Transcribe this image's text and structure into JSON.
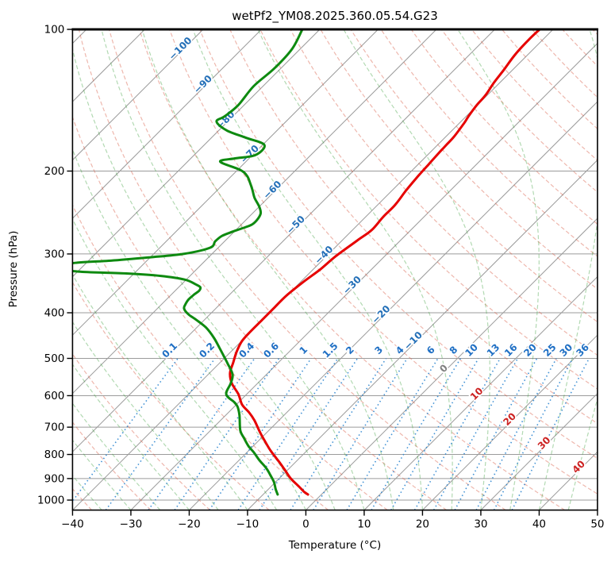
{
  "title": "wetPf2_YM08.2025.360.05.54.G23",
  "axes": {
    "xlabel": "Temperature (°C)",
    "ylabel": "Pressure (hPa)",
    "x_ticks": [
      -40,
      -30,
      -20,
      -10,
      0,
      10,
      20,
      30,
      40,
      50
    ],
    "y_ticks": [
      100,
      200,
      300,
      400,
      500,
      600,
      700,
      800,
      900,
      1000
    ],
    "xlim": [
      -40,
      50
    ],
    "ylim": [
      1050,
      100
    ]
  },
  "chart_data": {
    "type": "line",
    "projection": "skew-T log-P",
    "title": "wetPf2_YM08.2025.360.05.54.G23",
    "xlabel": "Temperature (°C)",
    "ylabel": "Pressure (hPa)",
    "x_unit": "degC",
    "y_unit": "hPa",
    "series": [
      {
        "name": "temperature",
        "points_p_t": [
          [
            100,
            -42.3
          ],
          [
            105,
            -42.4
          ],
          [
            113,
            -42.2
          ],
          [
            122,
            -41.5
          ],
          [
            130,
            -41
          ],
          [
            138,
            -40.3
          ],
          [
            145,
            -40.1
          ],
          [
            153,
            -39.6
          ],
          [
            158,
            -39.2
          ],
          [
            169,
            -38.6
          ],
          [
            176,
            -38.5
          ],
          [
            183,
            -38.4
          ],
          [
            194,
            -38.2
          ],
          [
            205,
            -38
          ],
          [
            220,
            -37.6
          ],
          [
            236,
            -37
          ],
          [
            250,
            -37
          ],
          [
            267,
            -36.7
          ],
          [
            281,
            -37.4
          ],
          [
            304,
            -38.4
          ],
          [
            324,
            -38.8
          ],
          [
            346,
            -39.6
          ],
          [
            369,
            -40.1
          ],
          [
            391,
            -40.1
          ],
          [
            414,
            -40.1
          ],
          [
            439,
            -40.1
          ],
          [
            460,
            -39.9
          ],
          [
            484,
            -39
          ],
          [
            511,
            -37.7
          ],
          [
            537,
            -36.5
          ],
          [
            565,
            -34.4
          ],
          [
            596,
            -31.4
          ],
          [
            627,
            -29
          ],
          [
            651,
            -26.5
          ],
          [
            677,
            -24.2
          ],
          [
            719,
            -21.1
          ],
          [
            754,
            -18.5
          ],
          [
            787,
            -16.1
          ],
          [
            830,
            -12.8
          ],
          [
            867,
            -10.2
          ],
          [
            901,
            -7.9
          ],
          [
            936,
            -5.2
          ],
          [
            962,
            -3.3
          ],
          [
            973,
            -2.3
          ]
        ]
      },
      {
        "name": "dewpoint",
        "points_p_t": [
          [
            100,
            -83
          ],
          [
            110,
            -81.4
          ],
          [
            121,
            -81.1
          ],
          [
            132,
            -81.6
          ],
          [
            145,
            -81
          ],
          [
            153,
            -81.4
          ],
          [
            157,
            -81.9
          ],
          [
            164,
            -78.6
          ],
          [
            170,
            -74
          ],
          [
            176,
            -69.7
          ],
          [
            185,
            -69.5
          ],
          [
            188,
            -72.5
          ],
          [
            191,
            -74.4
          ],
          [
            199,
            -69.5
          ],
          [
            205,
            -67.3
          ],
          [
            213,
            -65.4
          ],
          [
            219,
            -64.1
          ],
          [
            228,
            -62.3
          ],
          [
            238,
            -60
          ],
          [
            246,
            -58.6
          ],
          [
            254,
            -58.1
          ],
          [
            260,
            -58.2
          ],
          [
            265,
            -59.3
          ],
          [
            270,
            -60.5
          ],
          [
            275,
            -61.4
          ],
          [
            282,
            -61.6
          ],
          [
            291,
            -61.4
          ],
          [
            300,
            -64.9
          ],
          [
            305,
            -70.1
          ],
          [
            310,
            -76.2
          ],
          [
            313,
            -81.6
          ],
          [
            320,
            -86.5
          ],
          [
            327,
            -79.9
          ],
          [
            330,
            -71.3
          ],
          [
            334,
            -65
          ],
          [
            340,
            -60.3
          ],
          [
            348,
            -57.6
          ],
          [
            353,
            -56.3
          ],
          [
            359,
            -55.9
          ],
          [
            366,
            -56.1
          ],
          [
            375,
            -56.2
          ],
          [
            384,
            -55.9
          ],
          [
            392,
            -55.4
          ],
          [
            403,
            -53.7
          ],
          [
            414,
            -51.4
          ],
          [
            430,
            -48.4
          ],
          [
            452,
            -45.3
          ],
          [
            475,
            -42.6
          ],
          [
            494,
            -40.5
          ],
          [
            513,
            -38.5
          ],
          [
            541,
            -35.8
          ],
          [
            565,
            -34.6
          ],
          [
            596,
            -33.5
          ],
          [
            620,
            -30.7
          ],
          [
            635,
            -29.3
          ],
          [
            661,
            -27.6
          ],
          [
            711,
            -24.9
          ],
          [
            739,
            -22.9
          ],
          [
            768,
            -20.8
          ],
          [
            792,
            -18.8
          ],
          [
            823,
            -16.5
          ],
          [
            855,
            -14
          ],
          [
            883,
            -12.2
          ],
          [
            915,
            -10.3
          ],
          [
            947,
            -8.8
          ],
          [
            973,
            -7.5
          ]
        ]
      }
    ],
    "isotherm_labels": {
      "values": [
        -100,
        -90,
        -80,
        -70,
        -60,
        -50,
        -40,
        -30,
        -20,
        -10,
        0,
        10,
        20,
        30,
        40
      ]
    },
    "mixing_ratio_labels": [
      0.1,
      0.2,
      0.4,
      0.6,
      1,
      1.5,
      2,
      3,
      4,
      6,
      8,
      10,
      13,
      16,
      20,
      25,
      30,
      36
    ],
    "reference_lines": {
      "isotherms_c": {
        "start": -120,
        "end": 50,
        "step": 10
      },
      "dry_adiabats_c": {
        "start": -40,
        "end": 200,
        "step": 10
      },
      "moist_adiabats_c": {
        "start": -55,
        "end": 45,
        "step": 5
      },
      "mixing_lines_p_range_hPa": [
        1050,
        500
      ]
    },
    "grid": true,
    "legend": false
  },
  "colors": {
    "temperature": "#e60000",
    "dewpoint": "#0e8a10",
    "isotherm": "#9b9b9b",
    "grid": "#9b9b9b",
    "dry_adiabat": "#d9604a",
    "moist_adiabat": "#3fa03f",
    "mixing_line": "#2e86d0",
    "mixing_label": "#1f6fc4",
    "iso_label_negative": "#2470b8",
    "iso_label_zero": "#808080",
    "iso_label_positive": "#cc2222",
    "spine": "#000000"
  }
}
